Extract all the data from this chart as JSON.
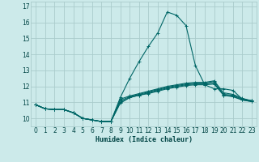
{
  "xlabel": "Humidex (Indice chaleur)",
  "bg_color": "#cceaea",
  "line_color": "#006666",
  "grid_color": "#aacccc",
  "series": [
    {
      "x": [
        0,
        1,
        2,
        3,
        4,
        5,
        6,
        7,
        8,
        9,
        10,
        11,
        12,
        13,
        14,
        15,
        16,
        17,
        18,
        19,
        20,
        21,
        22,
        23
      ],
      "y": [
        10.85,
        10.6,
        10.55,
        10.55,
        10.35,
        10.0,
        9.9,
        9.8,
        9.8,
        10.95,
        11.3,
        11.45,
        11.55,
        11.7,
        11.85,
        11.95,
        12.05,
        12.1,
        12.1,
        12.15,
        11.45,
        11.35,
        11.15,
        11.05
      ]
    },
    {
      "x": [
        0,
        1,
        2,
        3,
        4,
        5,
        6,
        7,
        8,
        9,
        10,
        11,
        12,
        13,
        14,
        15,
        16,
        17,
        18,
        19,
        20,
        21,
        22,
        23
      ],
      "y": [
        10.85,
        10.6,
        10.55,
        10.55,
        10.35,
        10.0,
        9.9,
        9.8,
        9.8,
        11.0,
        11.3,
        11.45,
        11.6,
        11.75,
        11.9,
        12.0,
        12.1,
        12.15,
        12.15,
        12.2,
        11.45,
        11.4,
        11.15,
        11.05
      ]
    },
    {
      "x": [
        0,
        1,
        2,
        3,
        4,
        5,
        6,
        7,
        8,
        9,
        10,
        11,
        12,
        13,
        14,
        15,
        16,
        17,
        18,
        19,
        20,
        21,
        22,
        23
      ],
      "y": [
        10.85,
        10.6,
        10.55,
        10.55,
        10.35,
        10.0,
        9.9,
        9.8,
        9.8,
        11.1,
        11.35,
        11.5,
        11.65,
        11.8,
        11.95,
        12.05,
        12.15,
        12.2,
        12.2,
        12.3,
        11.5,
        11.45,
        11.2,
        11.1
      ]
    },
    {
      "x": [
        0,
        1,
        2,
        3,
        4,
        5,
        6,
        7,
        8,
        9,
        10,
        11,
        12,
        13,
        14,
        15,
        16,
        17,
        18,
        19,
        20,
        21,
        22,
        23
      ],
      "y": [
        10.85,
        10.6,
        10.55,
        10.55,
        10.35,
        10.0,
        9.9,
        9.8,
        9.8,
        11.2,
        11.4,
        11.55,
        11.7,
        11.85,
        12.0,
        12.1,
        12.2,
        12.25,
        12.25,
        12.35,
        11.6,
        11.5,
        11.25,
        11.1
      ]
    },
    {
      "x": [
        0,
        1,
        2,
        3,
        4,
        5,
        6,
        7,
        8,
        9,
        10,
        11,
        12,
        13,
        14,
        15,
        16,
        17,
        18,
        19,
        20,
        21,
        22,
        23
      ],
      "y": [
        10.85,
        10.6,
        10.55,
        10.55,
        10.35,
        10.0,
        9.9,
        9.8,
        9.8,
        11.3,
        12.5,
        13.55,
        14.5,
        15.35,
        16.65,
        16.45,
        15.8,
        13.3,
        12.1,
        11.85,
        11.85,
        11.75,
        11.2,
        11.1
      ]
    }
  ],
  "ylim": [
    9.5,
    17.3
  ],
  "xlim": [
    -0.5,
    23.5
  ],
  "yticks": [
    10,
    11,
    12,
    13,
    14,
    15,
    16,
    17
  ],
  "xticks": [
    0,
    1,
    2,
    3,
    4,
    5,
    6,
    7,
    8,
    9,
    10,
    11,
    12,
    13,
    14,
    15,
    16,
    17,
    18,
    19,
    20,
    21,
    22,
    23
  ],
  "marker": "+"
}
